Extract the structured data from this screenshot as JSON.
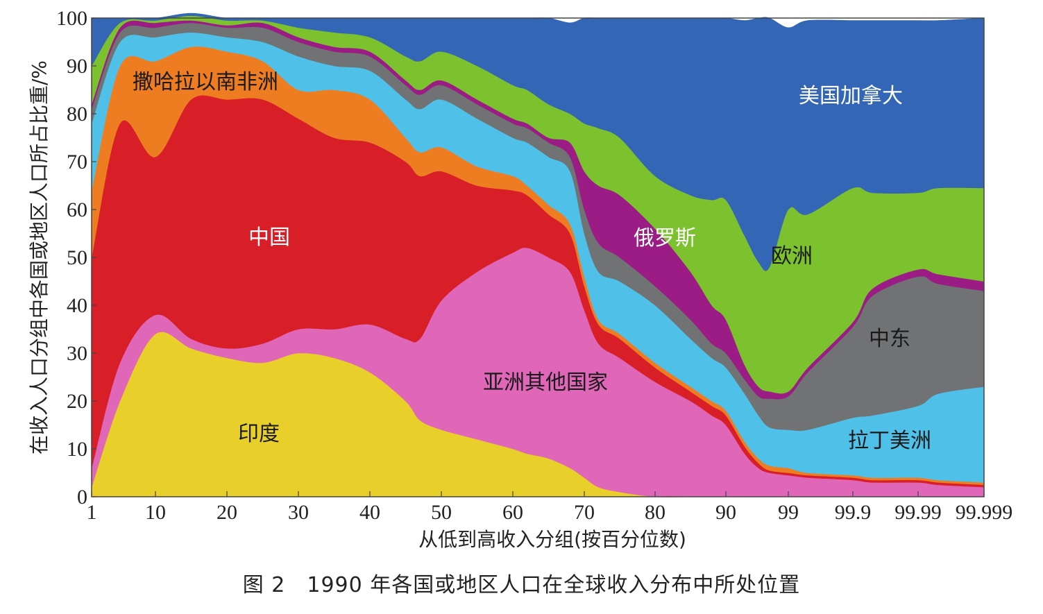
{
  "chart_data": {
    "type": "area",
    "stacked": true,
    "ylabel": "在收入人口分组中各国或地区人口所占比重/%",
    "xlabel": "从低到高收入分组(按百分位数)",
    "ylim": [
      0,
      100
    ],
    "yticks": [
      "0",
      "10",
      "20",
      "30",
      "40",
      "50",
      "60",
      "70",
      "80",
      "90",
      "100"
    ],
    "xticks": [
      "1",
      "10",
      "20",
      "30",
      "40",
      "50",
      "60",
      "70",
      "80",
      "90",
      "99",
      "99.9",
      "99.99",
      "99.999"
    ],
    "x": [
      "1",
      "5",
      "10",
      "15",
      "20",
      "25",
      "30",
      "35",
      "40",
      "45",
      "47",
      "50",
      "55",
      "60",
      "62",
      "65",
      "68",
      "70",
      "72",
      "75",
      "80",
      "85",
      "88",
      "90",
      "95",
      "97",
      "98",
      "99",
      "99.5",
      "99.9",
      "99.95",
      "99.99",
      "99.995",
      "99.999"
    ],
    "series": [
      {
        "name": "印度",
        "color": "#e8cf2a",
        "values": [
          2,
          20,
          34,
          31,
          29,
          28,
          30,
          29,
          26,
          20,
          16,
          14,
          12,
          10,
          9,
          8,
          6,
          4,
          2,
          1,
          0,
          0,
          0,
          0,
          0,
          0,
          0,
          0,
          0,
          0,
          0,
          0,
          0,
          0
        ]
      },
      {
        "name": "亚洲其他国家",
        "color": "#e066b8",
        "values": [
          4,
          8,
          4,
          2,
          2,
          4,
          5,
          6,
          10,
          13,
          17,
          27,
          35,
          41,
          43,
          42,
          41,
          35,
          30,
          28,
          24,
          20,
          17,
          15,
          9,
          6,
          5,
          4.5,
          4,
          3.5,
          3,
          3,
          2.5,
          2
        ]
      },
      {
        "name": "中国",
        "color": "#d81f27",
        "values": [
          44,
          50,
          33,
          50,
          52,
          51,
          44,
          40,
          38,
          37,
          34,
          27,
          18,
          13,
          11,
          9,
          8,
          5,
          4,
          4,
          3,
          2,
          2,
          2,
          1.5,
          1,
          0.5,
          0.5,
          0.5,
          0.5,
          0.5,
          0.5,
          0.5,
          0.5
        ]
      },
      {
        "name": "撒哈拉以南非洲",
        "color": "#ee7d22",
        "values": [
          14,
          12,
          20,
          11,
          10,
          8,
          6,
          10,
          9,
          5,
          5,
          5,
          4,
          3,
          2,
          2,
          2,
          2,
          1,
          1,
          1,
          1,
          1,
          1,
          1,
          1,
          1,
          1,
          0.5,
          0.5,
          0.5,
          0.5,
          0.5,
          0.5
        ]
      },
      {
        "name": "拉丁美洲",
        "color": "#4fc1e8",
        "values": [
          14,
          5,
          5,
          3,
          3,
          4,
          7,
          5,
          6,
          8,
          9,
          10,
          10,
          8,
          9,
          10,
          11,
          9,
          10,
          11,
          12,
          10,
          9,
          9,
          10,
          9,
          8,
          8,
          9,
          12,
          13,
          15,
          18,
          20
        ]
      },
      {
        "name": "中东",
        "color": "#707274",
        "values": [
          3,
          2,
          2,
          2,
          2,
          3,
          3,
          3,
          3,
          3,
          3,
          3,
          3,
          3,
          3,
          3,
          3,
          5,
          6,
          5,
          4,
          4,
          3,
          3,
          3,
          4,
          6,
          7,
          12,
          19,
          25,
          27,
          23,
          20
        ]
      },
      {
        "name": "俄罗斯",
        "color": "#9b1c85",
        "values": [
          1,
          1,
          1,
          0.5,
          0.5,
          1,
          1,
          1,
          1,
          1,
          1,
          1,
          1,
          1,
          1,
          1,
          3,
          8,
          12,
          13,
          12,
          10,
          8,
          7,
          3,
          2,
          1.5,
          1,
          1,
          1,
          1.5,
          1.5,
          2,
          2
        ]
      },
      {
        "name": "欧洲",
        "color": "#7cc12e",
        "values": [
          8,
          1,
          0.5,
          1,
          1,
          0.5,
          2,
          3,
          3,
          5,
          6,
          6,
          7,
          7,
          7,
          7,
          6,
          10,
          12,
          12,
          11,
          16,
          22,
          25,
          27,
          26,
          26,
          38,
          32,
          28,
          20,
          16,
          18,
          19.5
        ]
      },
      {
        "name": "美国加拿大",
        "color": "#3366b5",
        "values": [
          10,
          1,
          0.5,
          0.5,
          0.5,
          0.5,
          2,
          3,
          4,
          8,
          9,
          7,
          10,
          14,
          15,
          18,
          19,
          22,
          23,
          25,
          33,
          37,
          38,
          38,
          45,
          51,
          52,
          38,
          40.5,
          35,
          36,
          36,
          35,
          35.5
        ]
      }
    ],
    "annotations": [
      {
        "text": "撒哈拉以南非洲",
        "series": "撒哈拉以南非洲"
      },
      {
        "text": "中国",
        "series": "中国"
      },
      {
        "text": "印度",
        "series": "印度"
      },
      {
        "text": "亚洲其他国家",
        "series": "亚洲其他国家"
      },
      {
        "text": "俄罗斯",
        "series": "俄罗斯"
      },
      {
        "text": "欧洲",
        "series": "欧洲"
      },
      {
        "text": "美国加拿大",
        "series": "美国加拿大"
      },
      {
        "text": "中东",
        "series": "中东"
      },
      {
        "text": "拉丁美洲",
        "series": "拉丁美洲"
      }
    ]
  },
  "caption": "图 2　1990 年各国或地区人口在全球收入分布中所处位置"
}
